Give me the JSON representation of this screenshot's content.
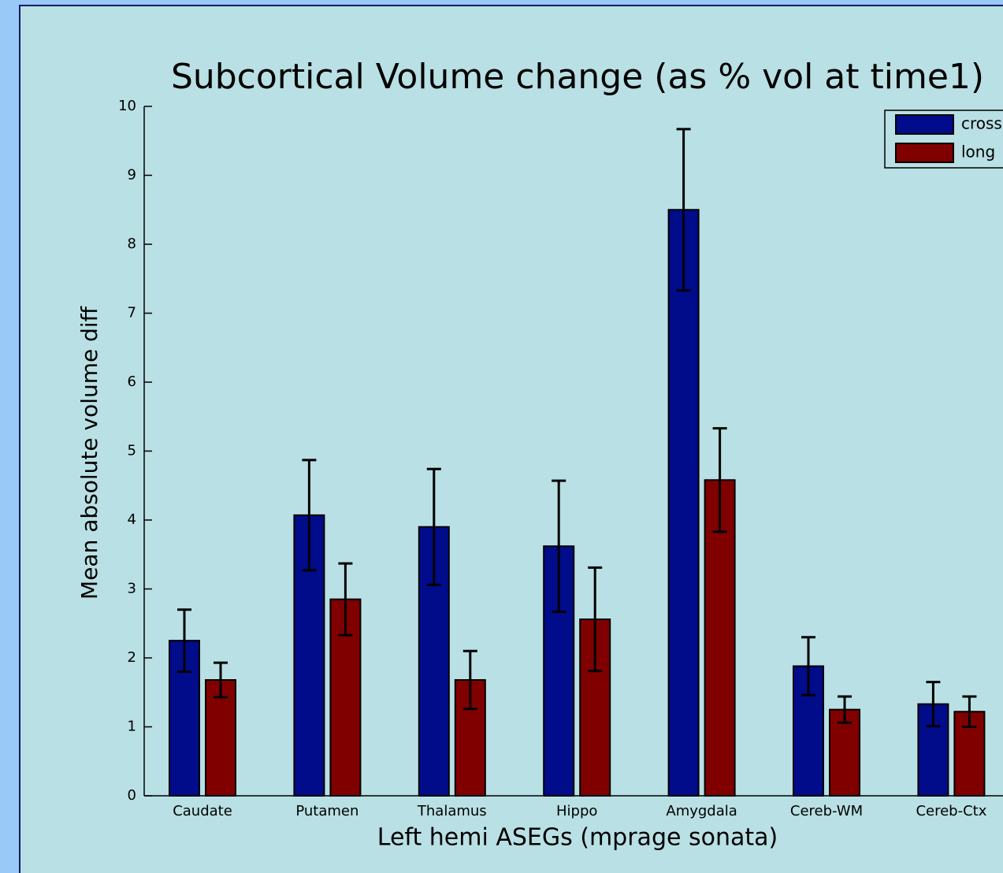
{
  "chart_data": {
    "type": "bar",
    "title": "Subcortical Volume change (as % vol at time1)",
    "x_label": "Left hemi ASEGs (mprage sonata)",
    "y_label": "Mean absolute volume diff",
    "categories": [
      "Caudate",
      "Putamen",
      "Thalamus",
      "Hippo",
      "Amygdala",
      "Cereb-WM",
      "Cereb-Ctx"
    ],
    "series": [
      {
        "name": "cross",
        "color": "#000c8a",
        "values": [
          2.25,
          4.07,
          3.9,
          3.62,
          8.5,
          1.88,
          1.33
        ],
        "errors": [
          0.45,
          0.8,
          0.84,
          0.95,
          1.17,
          0.42,
          0.32
        ]
      },
      {
        "name": "long",
        "color": "#800000",
        "values": [
          1.68,
          2.85,
          1.68,
          2.56,
          4.58,
          1.25,
          1.22
        ],
        "errors": [
          0.25,
          0.52,
          0.42,
          0.75,
          0.75,
          0.19,
          0.22
        ]
      }
    ],
    "ylim": [
      0,
      10
    ],
    "yticks": [
      0,
      1,
      2,
      3,
      4,
      5,
      6,
      7,
      8,
      9,
      10
    ],
    "legend": "upper right"
  }
}
